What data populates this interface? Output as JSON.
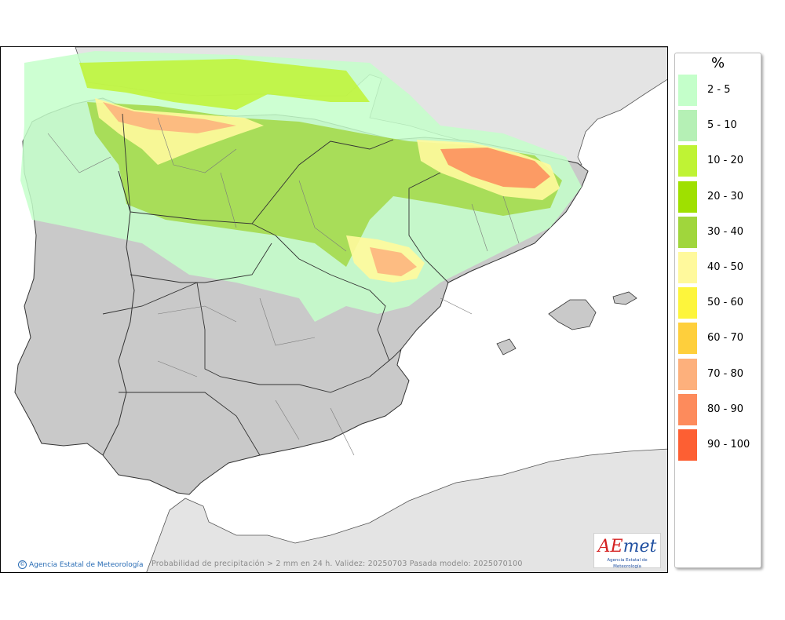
{
  "legend": {
    "title": "%",
    "items": [
      {
        "label": "2 - 5",
        "color": "#c4ffca"
      },
      {
        "label": "5 - 10",
        "color": "#b5f0b5"
      },
      {
        "label": "10 - 20",
        "color": "#bff334"
      },
      {
        "label": "20 - 30",
        "color": "#9fe000"
      },
      {
        "label": "30 - 40",
        "color": "#a0d63c"
      },
      {
        "label": "40 - 50",
        "color": "#fff99c"
      },
      {
        "label": "50 - 60",
        "color": "#fdf53c"
      },
      {
        "label": "60 - 70",
        "color": "#fecf3c"
      },
      {
        "label": "70 - 80",
        "color": "#fdb07c"
      },
      {
        "label": "80 - 90",
        "color": "#fd8b5c"
      },
      {
        "label": "90 - 100",
        "color": "#fd5f33"
      }
    ]
  },
  "map": {
    "caption": "Probabilidad de precipitación > 2 mm en 24 h. Validez: 20250703 Pasada modelo: 2025070100",
    "credit": "Agencia Estatal de Meteorología",
    "credit_icon": "copyright-icon",
    "logo": {
      "pre": "A",
      "mark": "E",
      "post": "met",
      "subtitle": "Agencia Estatal de Meteorología"
    },
    "colors": {
      "sea": "#ffffff",
      "land": "#c9c9c9",
      "foreign_land": "#e6e6e6",
      "border": "#3a3a3a"
    }
  }
}
